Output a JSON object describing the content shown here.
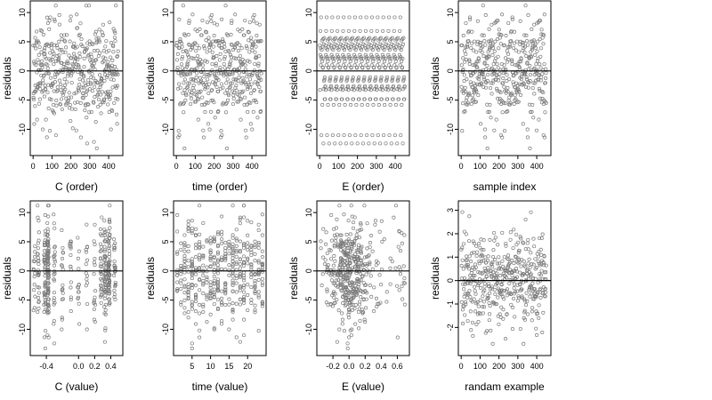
{
  "figure": {
    "layout": "2x4 grid of residual scatter plots",
    "point_style": "open-circle",
    "point_color": "#7a7a7a",
    "reference_line_color": "#000000",
    "background": "#ffffff"
  },
  "chart_data": [
    {
      "type": "scatter",
      "xlabel": "C (order)",
      "ylabel": "residuals",
      "xlim": [
        -15,
        475
      ],
      "ylim": [
        -14.5,
        12
      ],
      "xticks": [
        0,
        100,
        200,
        300,
        400
      ],
      "xtick_labels": [
        "0",
        "100",
        "200",
        "300",
        "400"
      ],
      "yticks": [
        -10,
        -5,
        0,
        5,
        10
      ],
      "ytick_labels": [
        "-10",
        "-5",
        "0",
        "5",
        "10"
      ],
      "reference_line": 0,
      "n_points": 450,
      "x_values": "sample order 1..450",
      "residual_range": [
        -13.5,
        11.2
      ]
    },
    {
      "type": "scatter",
      "xlabel": "time (order)",
      "ylabel": "residuals",
      "xlim": [
        -15,
        475
      ],
      "ylim": [
        -14.5,
        12
      ],
      "xticks": [
        0,
        100,
        200,
        300,
        400
      ],
      "xtick_labels": [
        "0",
        "100",
        "200",
        "300",
        "400"
      ],
      "yticks": [
        -10,
        -5,
        0,
        5,
        10
      ],
      "ytick_labels": [
        "-10",
        "-5",
        "0",
        "5",
        "10"
      ],
      "reference_line": 0,
      "n_points": 450,
      "x_values": "sample order 1..450",
      "residual_range": [
        -13.5,
        11.2
      ]
    },
    {
      "type": "scatter",
      "xlabel": "E (order)",
      "ylabel": "residuals",
      "xlim": [
        -15,
        475
      ],
      "ylim": [
        -14.5,
        12
      ],
      "xticks": [
        0,
        100,
        200,
        300,
        400
      ],
      "xtick_labels": [
        "0",
        "100",
        "200",
        "300",
        "400"
      ],
      "yticks": [
        -10,
        -5,
        0,
        5,
        10
      ],
      "ytick_labels": [
        "-10",
        "-5",
        "0",
        "5",
        "10"
      ],
      "reference_line": 0,
      "n_points": 450,
      "x_values": "sample order 1..450",
      "residual_range": [
        -13.5,
        11.2
      ]
    },
    {
      "type": "scatter",
      "xlabel": "sample index",
      "ylabel": "residuals",
      "xlim": [
        -15,
        475
      ],
      "ylim": [
        -14.5,
        12
      ],
      "xticks": [
        0,
        100,
        200,
        300,
        400
      ],
      "xtick_labels": [
        "0",
        "100",
        "200",
        "300",
        "400"
      ],
      "yticks": [
        -10,
        -5,
        0,
        5,
        10
      ],
      "ytick_labels": [
        "-10",
        "-5",
        "0",
        "5",
        "10"
      ],
      "reference_line": 0,
      "n_points": 450,
      "x_values": "sample index 1..450",
      "residual_range": [
        -13.5,
        11.2
      ]
    },
    {
      "type": "scatter",
      "xlabel": "C (value)",
      "ylabel": "residuals",
      "xlim": [
        -0.6,
        0.55
      ],
      "ylim": [
        -14.5,
        12
      ],
      "xticks": [
        -0.4,
        0.0,
        0.2,
        0.4
      ],
      "xtick_labels": [
        "-0.4",
        "0.0",
        "0.2",
        "0.4"
      ],
      "yticks": [
        -10,
        -5,
        0,
        5,
        10
      ],
      "ytick_labels": [
        "-10",
        "-5",
        "0",
        "5",
        "10"
      ],
      "reference_line": 0,
      "n_points": 450,
      "x_values": "C values clustered around -0.4 and 0.3-0.4, spread -0.55 to 0.5",
      "residual_range": [
        -13.5,
        11.2
      ]
    },
    {
      "type": "scatter",
      "xlabel": "time (value)",
      "ylabel": "residuals",
      "xlim": [
        0,
        25
      ],
      "ylim": [
        -14.5,
        12
      ],
      "xticks": [
        5,
        10,
        15,
        20
      ],
      "xtick_labels": [
        "5",
        "10",
        "15",
        "20"
      ],
      "yticks": [
        -10,
        -5,
        0,
        5,
        10
      ],
      "ytick_labels": [
        "-10",
        "-5",
        "0",
        "5",
        "10"
      ],
      "reference_line": 0,
      "n_points": 450,
      "x_values": "integer time values 1..24",
      "residual_range": [
        -13.5,
        11.2
      ]
    },
    {
      "type": "scatter",
      "xlabel": "E (value)",
      "ylabel": "residuals",
      "xlim": [
        -0.4,
        0.75
      ],
      "ylim": [
        -14.5,
        12
      ],
      "xticks": [
        -0.2,
        0.0,
        0.2,
        0.4,
        0.6
      ],
      "xtick_labels": [
        "-0.2",
        "0.0",
        "0.2",
        "0.4",
        "0.6"
      ],
      "yticks": [
        -10,
        -5,
        0,
        5,
        10
      ],
      "ytick_labels": [
        "-10",
        "-5",
        "0",
        "5",
        "10"
      ],
      "reference_line": 0,
      "n_points": 450,
      "x_values": "E values concentrated near 0.0, spread -0.35 to 0.7",
      "residual_range": [
        -13.5,
        11.2
      ]
    },
    {
      "type": "scatter",
      "xlabel": "randam example",
      "ylabel": "residuals",
      "xlim": [
        -15,
        475
      ],
      "ylim": [
        -3.2,
        3.4
      ],
      "xticks": [
        0,
        100,
        200,
        300,
        400
      ],
      "xtick_labels": [
        "0",
        "100",
        "200",
        "300",
        "400"
      ],
      "yticks": [
        -2,
        -1,
        0,
        1,
        2,
        3
      ],
      "ytick_labels": [
        "-2",
        "-1",
        "0",
        "1",
        "2",
        "3"
      ],
      "reference_line": 0,
      "n_points": 450,
      "x_values": "sample index 1..450",
      "residual_range": [
        -2.7,
        3.0
      ]
    }
  ]
}
